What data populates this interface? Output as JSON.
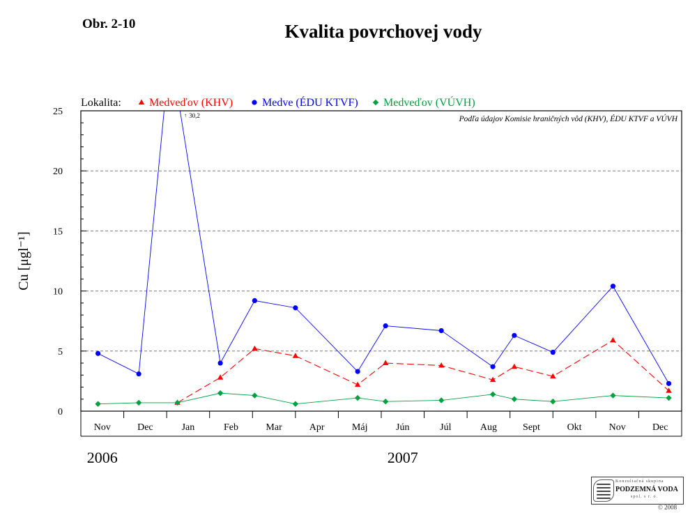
{
  "figure_number": "Obr. 2-10",
  "chart_data": {
    "type": "line",
    "title": "Kvalita povrchovej vody",
    "ylabel": "Cu [μgl⁻¹]",
    "xlabel": "",
    "ylim": [
      0,
      25
    ],
    "yticks": [
      0,
      5,
      10,
      15,
      20,
      25
    ],
    "grid": "horizontal dashed",
    "legend_prefix": "Lokalita:",
    "legend_placement": "top-left",
    "source_note": "Podľa údajov Komisie hraničných vôd (KHV), ÉDU KTVF a VÚVH",
    "months": [
      "Nov",
      "Dec",
      "Jan",
      "Feb",
      "Mar",
      "Apr",
      "Máj",
      "Jún",
      "Júl",
      "Aug",
      "Sept",
      "Okt",
      "Nov",
      "Dec"
    ],
    "years": [
      {
        "label": "2006",
        "under_month_index": 0.5
      },
      {
        "label": "2007",
        "under_month_index": 7.5
      }
    ],
    "series": [
      {
        "name": "Medveďov (KHV)",
        "color": "#ff0000",
        "marker": "triangle",
        "line": "dashed",
        "points": [
          {
            "x": 2.25,
            "y": 0.7
          },
          {
            "x": 3.25,
            "y": 2.8
          },
          {
            "x": 4.05,
            "y": 5.2
          },
          {
            "x": 5.0,
            "y": 4.6
          },
          {
            "x": 6.45,
            "y": 2.2
          },
          {
            "x": 7.1,
            "y": 4.0
          },
          {
            "x": 8.4,
            "y": 3.8
          },
          {
            "x": 9.6,
            "y": 2.6
          },
          {
            "x": 10.1,
            "y": 3.7
          },
          {
            "x": 11.0,
            "y": 2.9
          },
          {
            "x": 12.4,
            "y": 5.9
          },
          {
            "x": 13.7,
            "y": 1.7
          }
        ]
      },
      {
        "name": "Medve (ÉDU KTVF)",
        "color": "#0000ff",
        "marker": "circle",
        "line": "solid",
        "points": [
          {
            "x": 0.4,
            "y": 4.8
          },
          {
            "x": 1.35,
            "y": 3.1
          },
          {
            "x": 2.08,
            "y": 30.2
          },
          {
            "x": 3.25,
            "y": 4.0
          },
          {
            "x": 4.05,
            "y": 9.2
          },
          {
            "x": 5.0,
            "y": 8.6
          },
          {
            "x": 6.45,
            "y": 3.3
          },
          {
            "x": 7.1,
            "y": 7.1
          },
          {
            "x": 8.4,
            "y": 6.7
          },
          {
            "x": 9.6,
            "y": 3.7
          },
          {
            "x": 10.1,
            "y": 6.3
          },
          {
            "x": 11.0,
            "y": 4.9
          },
          {
            "x": 12.4,
            "y": 10.4
          },
          {
            "x": 13.7,
            "y": 2.3
          }
        ],
        "offscale_annotation": {
          "point_index": 2,
          "label": "30,2"
        }
      },
      {
        "name": "Medveďov (VÚVH)",
        "color": "#00a040",
        "marker": "diamond",
        "line": "solid",
        "points": [
          {
            "x": 0.4,
            "y": 0.6
          },
          {
            "x": 1.35,
            "y": 0.7
          },
          {
            "x": 2.25,
            "y": 0.7
          },
          {
            "x": 3.25,
            "y": 1.5
          },
          {
            "x": 4.05,
            "y": 1.3
          },
          {
            "x": 5.0,
            "y": 0.6
          },
          {
            "x": 6.45,
            "y": 1.1
          },
          {
            "x": 7.1,
            "y": 0.8
          },
          {
            "x": 8.4,
            "y": 0.9
          },
          {
            "x": 9.6,
            "y": 1.4
          },
          {
            "x": 10.1,
            "y": 1.0
          },
          {
            "x": 11.0,
            "y": 0.8
          },
          {
            "x": 12.4,
            "y": 1.3
          },
          {
            "x": 13.7,
            "y": 1.1
          }
        ]
      }
    ]
  },
  "logo": {
    "line1": "Konzultačná skupina",
    "line2": "PODZEMNÁ VODA",
    "line3": "spol. s r. o.",
    "copyright": "© 2008"
  }
}
